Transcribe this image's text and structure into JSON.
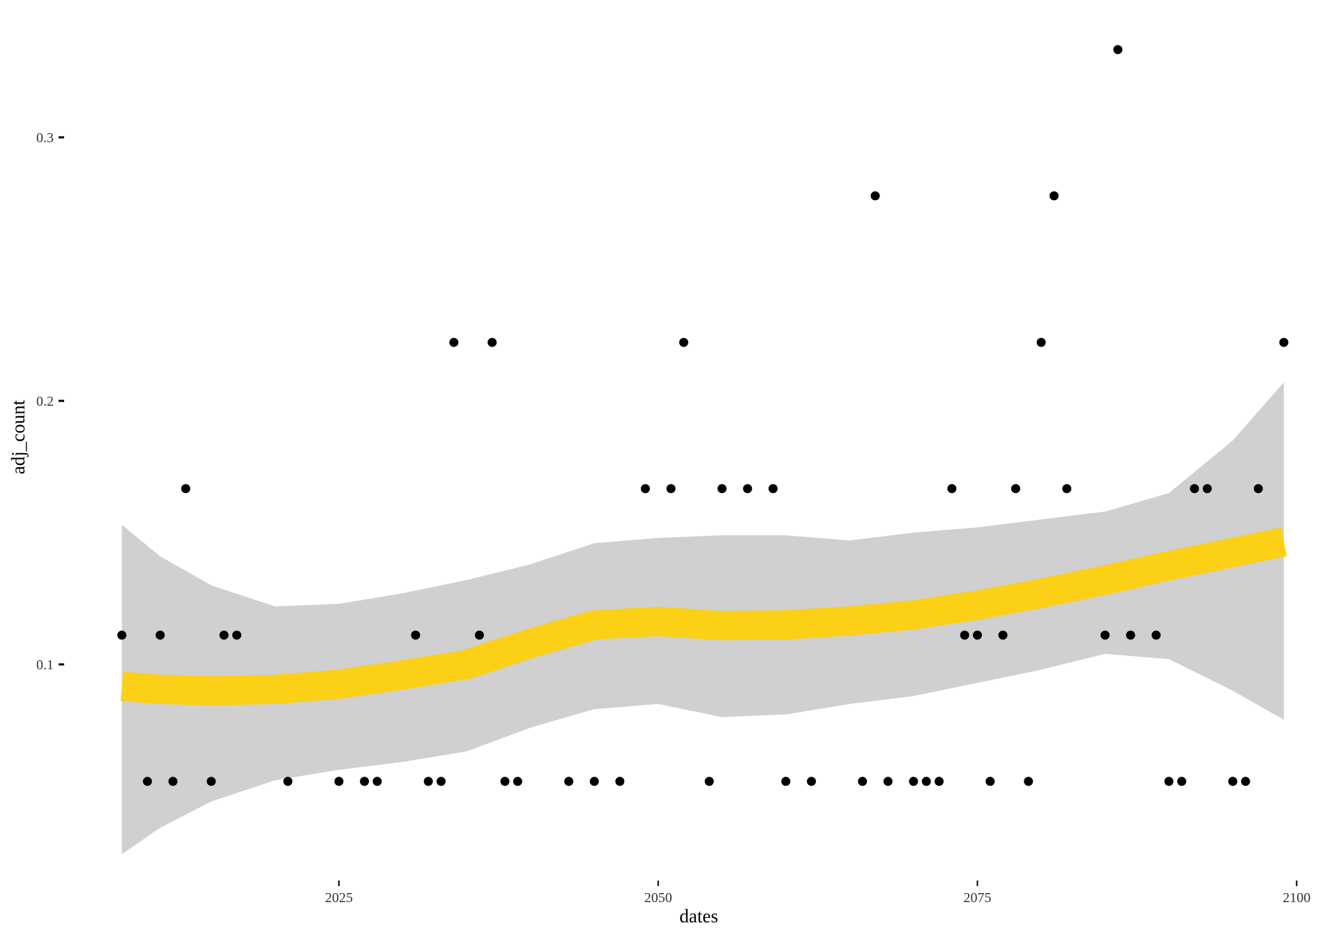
{
  "chart_data": {
    "type": "scatter",
    "xlabel": "dates",
    "ylabel": "adj_count",
    "xlim": [
      2005.4,
      2101.5
    ],
    "ylim": [
      0.018,
      0.352
    ],
    "x_ticks": [
      2025,
      2050,
      2075,
      2100
    ],
    "y_ticks": [
      0.1,
      0.2,
      0.3
    ],
    "x_tick_labels": [
      "2025",
      "2050",
      "2075",
      "2100"
    ],
    "y_tick_labels": [
      "0.1",
      "0.2",
      "0.3"
    ],
    "grid": false,
    "points": [
      {
        "x": 2008,
        "y": 0.1111
      },
      {
        "x": 2010,
        "y": 0.0556
      },
      {
        "x": 2011,
        "y": 0.1111
      },
      {
        "x": 2012,
        "y": 0.0556
      },
      {
        "x": 2013,
        "y": 0.1667
      },
      {
        "x": 2015,
        "y": 0.0556
      },
      {
        "x": 2016,
        "y": 0.1111
      },
      {
        "x": 2017,
        "y": 0.1111
      },
      {
        "x": 2021,
        "y": 0.0556
      },
      {
        "x": 2025,
        "y": 0.0556
      },
      {
        "x": 2027,
        "y": 0.0556
      },
      {
        "x": 2028,
        "y": 0.0556
      },
      {
        "x": 2031,
        "y": 0.1111
      },
      {
        "x": 2032,
        "y": 0.0556
      },
      {
        "x": 2033,
        "y": 0.0556
      },
      {
        "x": 2034,
        "y": 0.2222
      },
      {
        "x": 2036,
        "y": 0.1111
      },
      {
        "x": 2037,
        "y": 0.2222
      },
      {
        "x": 2038,
        "y": 0.0556
      },
      {
        "x": 2039,
        "y": 0.0556
      },
      {
        "x": 2043,
        "y": 0.0556
      },
      {
        "x": 2045,
        "y": 0.0556
      },
      {
        "x": 2047,
        "y": 0.0556
      },
      {
        "x": 2049,
        "y": 0.1667
      },
      {
        "x": 2051,
        "y": 0.1667
      },
      {
        "x": 2052,
        "y": 0.2222
      },
      {
        "x": 2054,
        "y": 0.0556
      },
      {
        "x": 2055,
        "y": 0.1667
      },
      {
        "x": 2057,
        "y": 0.1667
      },
      {
        "x": 2059,
        "y": 0.1667
      },
      {
        "x": 2060,
        "y": 0.0556
      },
      {
        "x": 2062,
        "y": 0.0556
      },
      {
        "x": 2066,
        "y": 0.0556
      },
      {
        "x": 2067,
        "y": 0.2778
      },
      {
        "x": 2068,
        "y": 0.0556
      },
      {
        "x": 2070,
        "y": 0.0556
      },
      {
        "x": 2071,
        "y": 0.0556
      },
      {
        "x": 2072,
        "y": 0.0556
      },
      {
        "x": 2073,
        "y": 0.1667
      },
      {
        "x": 2074,
        "y": 0.1111
      },
      {
        "x": 2075,
        "y": 0.1111
      },
      {
        "x": 2076,
        "y": 0.0556
      },
      {
        "x": 2077,
        "y": 0.1111
      },
      {
        "x": 2078,
        "y": 0.1667
      },
      {
        "x": 2079,
        "y": 0.0556
      },
      {
        "x": 2080,
        "y": 0.2222
      },
      {
        "x": 2081,
        "y": 0.2778
      },
      {
        "x": 2082,
        "y": 0.1667
      },
      {
        "x": 2085,
        "y": 0.1111
      },
      {
        "x": 2086,
        "y": 0.3333
      },
      {
        "x": 2087,
        "y": 0.1111
      },
      {
        "x": 2089,
        "y": 0.1111
      },
      {
        "x": 2090,
        "y": 0.0556
      },
      {
        "x": 2091,
        "y": 0.0556
      },
      {
        "x": 2092,
        "y": 0.1667
      },
      {
        "x": 2093,
        "y": 0.1667
      },
      {
        "x": 2095,
        "y": 0.0556
      },
      {
        "x": 2096,
        "y": 0.0556
      },
      {
        "x": 2097,
        "y": 0.1667
      },
      {
        "x": 2099,
        "y": 0.2222
      }
    ],
    "smooth": {
      "x": [
        2008,
        2011,
        2015,
        2020,
        2025,
        2030,
        2035,
        2040,
        2045,
        2050,
        2055,
        2060,
        2065,
        2070,
        2075,
        2080,
        2085,
        2090,
        2095,
        2099
      ],
      "y": [
        0.0917,
        0.0905,
        0.09,
        0.0905,
        0.0925,
        0.096,
        0.1,
        0.108,
        0.115,
        0.1163,
        0.1147,
        0.115,
        0.1165,
        0.1188,
        0.1225,
        0.127,
        0.132,
        0.1375,
        0.1425,
        0.1465
      ],
      "lower": [
        0.028,
        0.038,
        0.048,
        0.056,
        0.06,
        0.063,
        0.067,
        0.076,
        0.083,
        0.085,
        0.08,
        0.081,
        0.085,
        0.088,
        0.093,
        0.098,
        0.104,
        0.102,
        0.09,
        0.079
      ],
      "upper": [
        0.153,
        0.141,
        0.13,
        0.122,
        0.123,
        0.127,
        0.132,
        0.138,
        0.146,
        0.148,
        0.149,
        0.149,
        0.147,
        0.15,
        0.152,
        0.155,
        0.158,
        0.165,
        0.185,
        0.207
      ]
    },
    "colors": {
      "points": "#000000",
      "smooth_line": "#fccf0f",
      "confidence_band": "#d0d0d0",
      "axis": "#000000",
      "tick_label": "#333333",
      "background": "#ffffff"
    }
  }
}
